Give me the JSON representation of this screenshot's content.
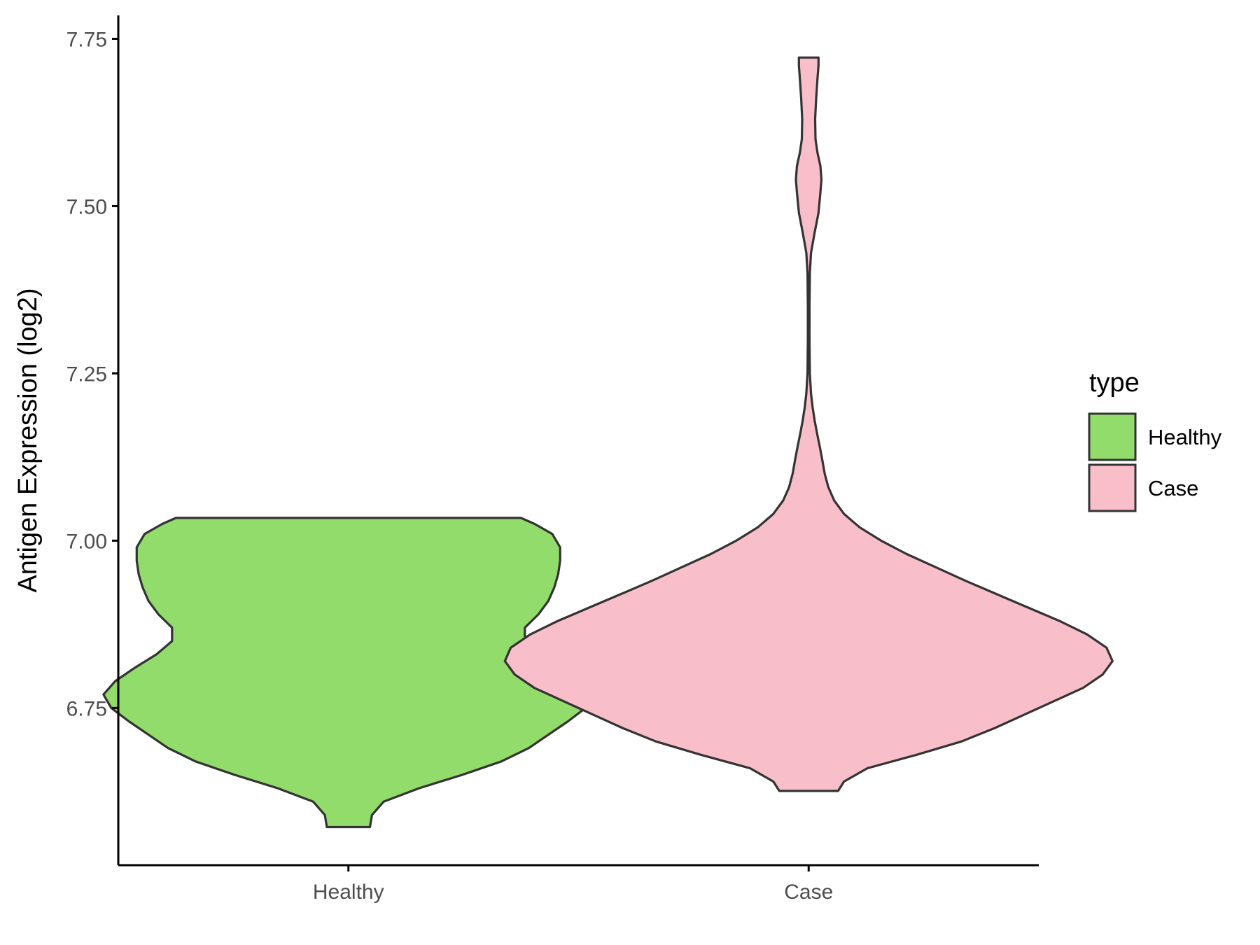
{
  "chart_data": {
    "type": "violin",
    "ylabel": "Antigen Expression (log2)",
    "xlabel": "",
    "ylim": [
      6.515,
      7.785
    ],
    "y_ticks": [
      6.75,
      7.0,
      7.25,
      7.5,
      7.75
    ],
    "y_tick_labels": [
      "6.75",
      "7.00",
      "7.25",
      "7.50",
      "7.75"
    ],
    "categories": [
      "Healthy",
      "Case"
    ],
    "grid": false,
    "legend": {
      "title": "type",
      "position": "right",
      "entries": [
        {
          "label": "Healthy",
          "color": "#92dc6b"
        },
        {
          "label": "Case",
          "color": "#f8bfcb"
        }
      ]
    },
    "series": [
      {
        "name": "Healthy",
        "color": "#92dc6b",
        "min": 6.572,
        "max": 7.034,
        "profile": [
          [
            6.572,
            0.11
          ],
          [
            6.59,
            0.12
          ],
          [
            6.61,
            0.18
          ],
          [
            6.63,
            0.36
          ],
          [
            6.65,
            0.58
          ],
          [
            6.67,
            0.78
          ],
          [
            6.69,
            0.92
          ],
          [
            6.71,
            1.02
          ],
          [
            6.73,
            1.12
          ],
          [
            6.75,
            1.21
          ],
          [
            6.77,
            1.25
          ],
          [
            6.79,
            1.19
          ],
          [
            6.81,
            1.09
          ],
          [
            6.83,
            0.98
          ],
          [
            6.85,
            0.9
          ],
          [
            6.87,
            0.9
          ],
          [
            6.89,
            0.97
          ],
          [
            6.91,
            1.02
          ],
          [
            6.93,
            1.05
          ],
          [
            6.95,
            1.07
          ],
          [
            6.97,
            1.08
          ],
          [
            6.99,
            1.08
          ],
          [
            7.01,
            1.04
          ],
          [
            7.025,
            0.95
          ],
          [
            7.034,
            0.88
          ]
        ]
      },
      {
        "name": "Case",
        "color": "#f8bfcb",
        "min": 6.626,
        "max": 7.722,
        "profile": [
          [
            6.626,
            0.15
          ],
          [
            6.64,
            0.18
          ],
          [
            6.66,
            0.3
          ],
          [
            6.68,
            0.55
          ],
          [
            6.7,
            0.78
          ],
          [
            6.72,
            0.95
          ],
          [
            6.74,
            1.1
          ],
          [
            6.76,
            1.25
          ],
          [
            6.78,
            1.4
          ],
          [
            6.8,
            1.5
          ],
          [
            6.82,
            1.55
          ],
          [
            6.84,
            1.52
          ],
          [
            6.86,
            1.42
          ],
          [
            6.88,
            1.28
          ],
          [
            6.9,
            1.12
          ],
          [
            6.92,
            0.96
          ],
          [
            6.94,
            0.8
          ],
          [
            6.96,
            0.65
          ],
          [
            6.98,
            0.5
          ],
          [
            7.0,
            0.37
          ],
          [
            7.02,
            0.26
          ],
          [
            7.04,
            0.18
          ],
          [
            7.06,
            0.13
          ],
          [
            7.08,
            0.1
          ],
          [
            7.1,
            0.082
          ],
          [
            7.12,
            0.07
          ],
          [
            7.14,
            0.057
          ],
          [
            7.16,
            0.043
          ],
          [
            7.18,
            0.03
          ],
          [
            7.2,
            0.02
          ],
          [
            7.22,
            0.012
          ],
          [
            7.25,
            0.006
          ],
          [
            7.3,
            0.004
          ],
          [
            7.35,
            0.004
          ],
          [
            7.4,
            0.006
          ],
          [
            7.43,
            0.012
          ],
          [
            7.46,
            0.03
          ],
          [
            7.49,
            0.05
          ],
          [
            7.52,
            0.06
          ],
          [
            7.54,
            0.065
          ],
          [
            7.56,
            0.06
          ],
          [
            7.58,
            0.045
          ],
          [
            7.6,
            0.035
          ],
          [
            7.63,
            0.033
          ],
          [
            7.66,
            0.038
          ],
          [
            7.69,
            0.045
          ],
          [
            7.71,
            0.05
          ],
          [
            7.722,
            0.05
          ]
        ]
      }
    ]
  }
}
